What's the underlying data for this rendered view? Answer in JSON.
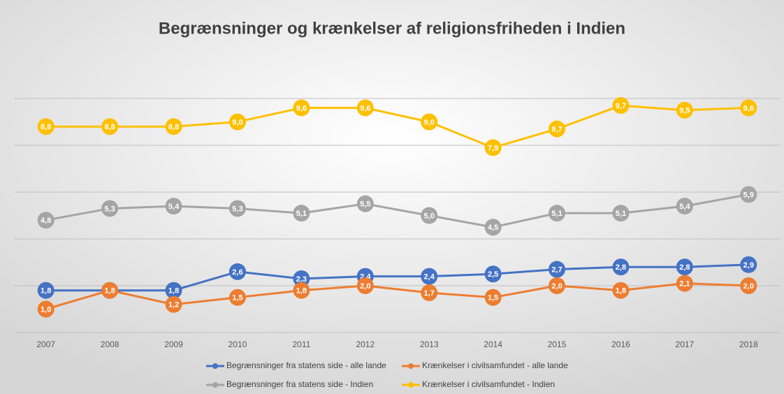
{
  "chart_data": {
    "type": "line",
    "title": "Begrænsninger og krænkelser af religionsfriheden i Indien",
    "categories": [
      "2007",
      "2008",
      "2009",
      "2010",
      "2011",
      "2012",
      "2013",
      "2014",
      "2015",
      "2016",
      "2017",
      "2018"
    ],
    "ylim": [
      0,
      12
    ],
    "yticks": [
      0,
      2,
      4,
      6,
      8,
      10
    ],
    "grid": true,
    "series": [
      {
        "name": "Begrænsninger fra statens side - alle lande",
        "color": "#4472c4",
        "values": [
          1.8,
          1.8,
          1.8,
          2.6,
          2.3,
          2.4,
          2.4,
          2.5,
          2.7,
          2.8,
          2.8,
          2.9
        ],
        "value_labels": [
          "1,8",
          "1,8",
          "1,8",
          "2,6",
          "2,3",
          "2,4",
          "2,4",
          "2,5",
          "2,7",
          "2,8",
          "2,8",
          "2,9"
        ]
      },
      {
        "name": "Krænkelser i civilsamfundet - alle lande",
        "color": "#ed7d31",
        "values": [
          1.0,
          1.8,
          1.2,
          1.5,
          1.8,
          2.0,
          1.7,
          1.5,
          2.0,
          1.8,
          2.1,
          2.0
        ],
        "value_labels": [
          "1,0",
          "1,8",
          "1,2",
          "1,5",
          "1,8",
          "2,0",
          "1,7",
          "1,5",
          "2,0",
          "1,8",
          "2,1",
          "2,0"
        ]
      },
      {
        "name": "Begrænsninger fra statens side - Indien",
        "color": "#a5a5a5",
        "values": [
          4.8,
          5.3,
          5.4,
          5.3,
          5.1,
          5.5,
          5.0,
          4.5,
          5.1,
          5.1,
          5.4,
          5.9
        ],
        "value_labels": [
          "4,8",
          "5,3",
          "5,4",
          "5,3",
          "5,1",
          "5,5",
          "5,0",
          "4,5",
          "5,1",
          "5,1",
          "5,4",
          "5,9"
        ]
      },
      {
        "name": "Krænkelser i civilsamfundet - Indien",
        "color": "#ffc000",
        "values": [
          8.8,
          8.8,
          8.8,
          9.0,
          9.6,
          9.6,
          9.0,
          7.9,
          8.7,
          9.7,
          9.5,
          9.6
        ],
        "value_labels": [
          "8,8",
          "8,8",
          "8,8",
          "9,0",
          "9,6",
          "9,6",
          "9,0",
          "7,9",
          "8,7",
          "9,7",
          "9,5",
          "9,6"
        ]
      }
    ]
  }
}
